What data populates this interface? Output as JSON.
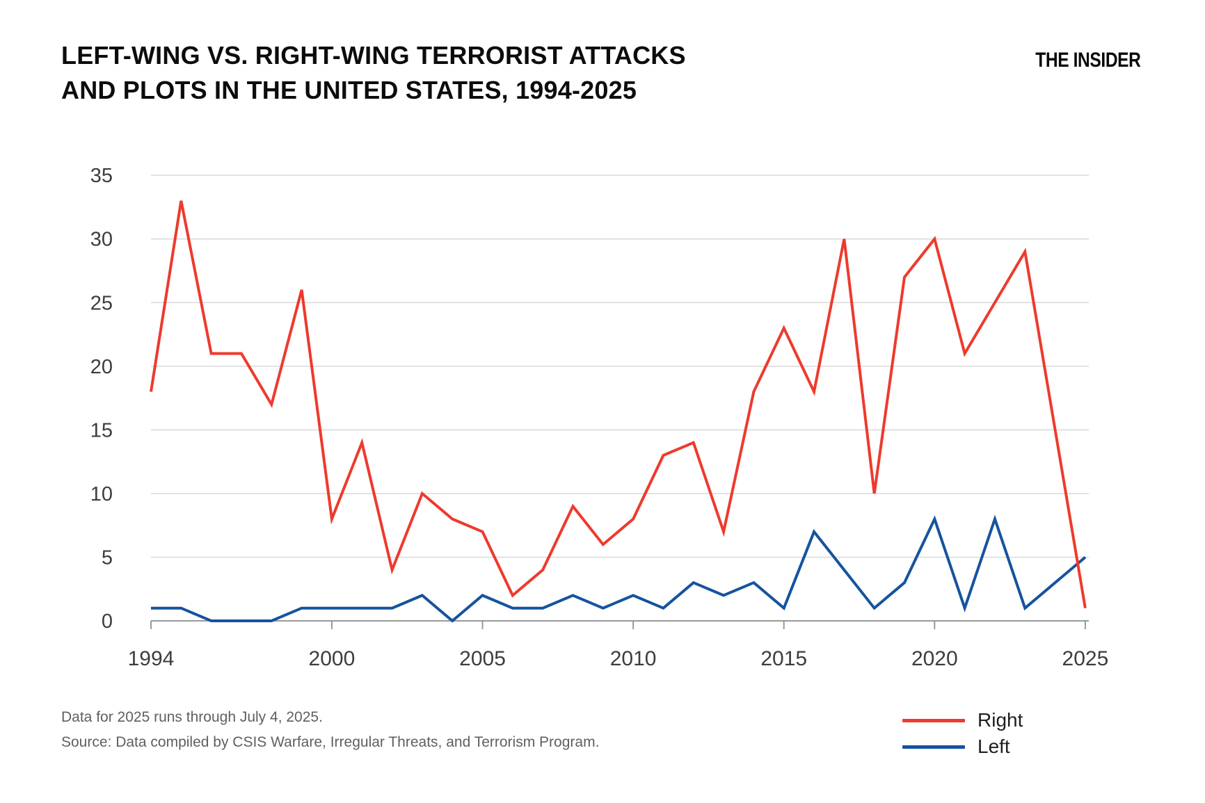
{
  "header": {
    "title_lines": [
      "LEFT-WING VS. RIGHT-WING TERRORIST ATTACKS",
      "AND PLOTS IN THE UNITED STATES, 1994-2025"
    ],
    "logo": "THE INSIDER"
  },
  "chart_data": {
    "type": "line",
    "title": "LEFT-WING VS. RIGHT-WING TERRORIST ATTACKS AND PLOTS IN THE UNITED STATES, 1994-2025",
    "x": [
      1994,
      1995,
      1996,
      1997,
      1998,
      1999,
      2000,
      2001,
      2002,
      2003,
      2004,
      2005,
      2006,
      2007,
      2008,
      2009,
      2010,
      2011,
      2012,
      2013,
      2014,
      2015,
      2016,
      2017,
      2018,
      2019,
      2020,
      2021,
      2022,
      2023,
      2024,
      2025
    ],
    "series": [
      {
        "name": "Right",
        "color": "#ee3a2d",
        "values": [
          18,
          33,
          21,
          21,
          17,
          26,
          8,
          14,
          4,
          10,
          8,
          7,
          2,
          4,
          9,
          6,
          8,
          13,
          14,
          7,
          18,
          23,
          18,
          30,
          10,
          27,
          30,
          21,
          25,
          29,
          15,
          1
        ]
      },
      {
        "name": "Left",
        "color": "#15539e",
        "values": [
          1,
          1,
          0,
          0,
          0,
          1,
          1,
          1,
          1,
          2,
          0,
          2,
          1,
          1,
          2,
          1,
          2,
          1,
          3,
          2,
          3,
          1,
          7,
          4,
          1,
          3,
          8,
          1,
          8,
          1,
          3,
          5
        ]
      }
    ],
    "xticks": [
      1994,
      2000,
      2005,
      2010,
      2015,
      2020,
      2025
    ],
    "yticks": [
      0,
      5,
      10,
      15,
      20,
      25,
      30,
      35
    ],
    "xlim": [
      1994,
      2025
    ],
    "ylim": [
      0,
      35
    ],
    "grid": "horizontal",
    "legend_position": "bottom-right",
    "axis_color": "#999999",
    "gridline_color": "#d9d9d9",
    "tick_label_color": "#3d3d3d"
  },
  "legend": {
    "right_label": "Right",
    "left_label": "Left"
  },
  "footer": {
    "note": "Data for 2025 runs through July 4, 2025.",
    "source": "Source: Data compiled by CSIS Warfare, Irregular Threats, and Terrorism Program."
  }
}
